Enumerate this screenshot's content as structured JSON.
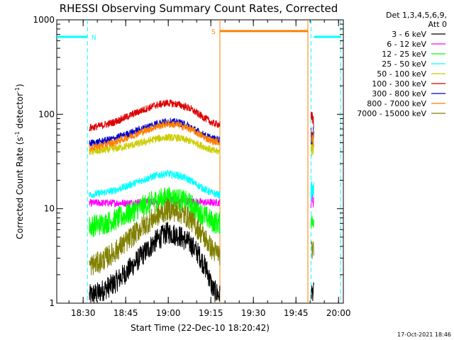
{
  "chart_data": {
    "type": "line",
    "title": "RHESSI Observing Summary Count Rates, Corrected",
    "xlabel": "Start Time (22-Dec-10 18:20:42)",
    "ylabel_main": "Corrected Count Rate (s",
    "ylabel_sup1": "-1",
    "ylabel_mid": " detector",
    "ylabel_sup2": "-1",
    "ylabel_end": ")",
    "y_scale": "log",
    "ylim": [
      1,
      1000
    ],
    "xlim_minutes": [
      0,
      101
    ],
    "x_ticks": [
      {
        "label": "18:30",
        "minute": 9.3
      },
      {
        "label": "18:45",
        "minute": 24.3
      },
      {
        "label": "19:00",
        "minute": 39.3
      },
      {
        "label": "19:15",
        "minute": 54.3
      },
      {
        "label": "19:30",
        "minute": 69.3
      },
      {
        "label": "19:45",
        "minute": 84.3
      },
      {
        "label": "20:00",
        "minute": 99.3
      }
    ],
    "y_ticks": [
      {
        "label": "1",
        "value": 1
      },
      {
        "label": "10",
        "value": 10
      },
      {
        "label": "100",
        "value": 100
      },
      {
        "label": "1000",
        "value": 1000
      }
    ],
    "grid": false,
    "legend_placement": "right",
    "legend_header": [
      "Det 1,3,4,5,6,9,",
      "Att 0"
    ],
    "timestamp": "17-Oct-2021 18:46",
    "data_interval_minutes": [
      11.5,
      57.5
    ],
    "data_interval_2_minutes": [
      89.6,
      90.6
    ],
    "series": [
      {
        "name": "3 - 6 keV",
        "color": "#000000",
        "x": [
          11.5,
          15,
          20,
          25,
          30,
          35,
          39,
          43,
          47,
          50,
          53,
          55,
          57.5
        ],
        "y": [
          1.2,
          1.3,
          1.6,
          2.2,
          3.2,
          4.6,
          5.6,
          5.2,
          4.3,
          3.3,
          2.2,
          1.4,
          1.2
        ]
      },
      {
        "name": "6 - 12 keV",
        "color": "#ff00ff",
        "x": [
          11.5,
          15,
          20,
          25,
          30,
          35,
          39,
          43,
          47,
          50,
          53,
          55,
          57.5
        ],
        "y": [
          11.5,
          11.5,
          11.5,
          11.5,
          11.8,
          12,
          12.3,
          12.2,
          12,
          11.8,
          11.6,
          11.6,
          11.6
        ]
      },
      {
        "name": "12 - 25 keV",
        "color": "#00ff00",
        "x": [
          11.5,
          15,
          20,
          25,
          30,
          35,
          39,
          43,
          47,
          50,
          53,
          55,
          57.5
        ],
        "y": [
          6.5,
          6.8,
          7.5,
          8.8,
          10.5,
          12.3,
          13.2,
          12.7,
          11.2,
          9.4,
          8.0,
          7.2,
          7.0
        ]
      },
      {
        "name": "25 - 50 keV",
        "color": "#00ffff",
        "x": [
          11.5,
          15,
          20,
          25,
          30,
          35,
          39,
          43,
          47,
          50,
          53,
          55,
          57.5
        ],
        "y": [
          14,
          14.5,
          15.5,
          17.5,
          20,
          22.5,
          23.5,
          22.5,
          20,
          17.5,
          15.5,
          14.5,
          14
        ]
      },
      {
        "name": "50 - 100 keV",
        "color": "#cccc00",
        "x": [
          11.5,
          15,
          20,
          25,
          30,
          35,
          39,
          43,
          47,
          50,
          53,
          55,
          57.5
        ],
        "y": [
          40,
          41,
          43,
          46,
          50,
          55,
          57,
          56,
          52,
          48,
          44,
          41,
          40
        ]
      },
      {
        "name": "100 - 300 keV",
        "color": "#dd0000",
        "x": [
          11.5,
          15,
          20,
          25,
          30,
          35,
          39,
          43,
          47,
          50,
          53,
          55,
          57.5
        ],
        "y": [
          72,
          75,
          82,
          95,
          110,
          125,
          132,
          127,
          115,
          100,
          88,
          80,
          78
        ]
      },
      {
        "name": "300 - 800 keV",
        "color": "#0000cc",
        "x": [
          11.5,
          15,
          20,
          25,
          30,
          35,
          39,
          43,
          47,
          50,
          53,
          55,
          57.5
        ],
        "y": [
          49,
          51,
          55,
          62,
          70,
          80,
          84,
          82,
          74,
          65,
          58,
          55,
          54
        ]
      },
      {
        "name": "800 - 7000 keV",
        "color": "#ff7f00",
        "x": [
          11.5,
          15,
          20,
          25,
          30,
          35,
          39,
          43,
          47,
          50,
          53,
          55,
          57.5
        ],
        "y": [
          44,
          46,
          50,
          57,
          65,
          74,
          79,
          77,
          70,
          62,
          55,
          52,
          51
        ]
      },
      {
        "name": "7000 - 15000 keV",
        "color": "#808000",
        "x": [
          11.5,
          15,
          20,
          25,
          30,
          35,
          39,
          43,
          47,
          50,
          53,
          55,
          57.5
        ],
        "y": [
          2.5,
          2.7,
          3.4,
          4.6,
          6.4,
          8.3,
          9.8,
          9.3,
          7.8,
          6.0,
          4.5,
          3.6,
          3.3
        ]
      }
    ],
    "flags": [
      {
        "label": "N",
        "color": "#00ffff",
        "level": 660,
        "bars": [
          [
            0,
            10.8
          ],
          [
            90.6,
            100.0
          ]
        ],
        "markers_minutes": [
          10.8,
          89.6,
          100.0
        ]
      },
      {
        "label": "S",
        "color": "#ff7f00",
        "level": 760,
        "bars": [
          [
            57.5,
            88.5
          ]
        ],
        "markers_minutes": [
          57.5,
          88.5
        ]
      }
    ]
  }
}
